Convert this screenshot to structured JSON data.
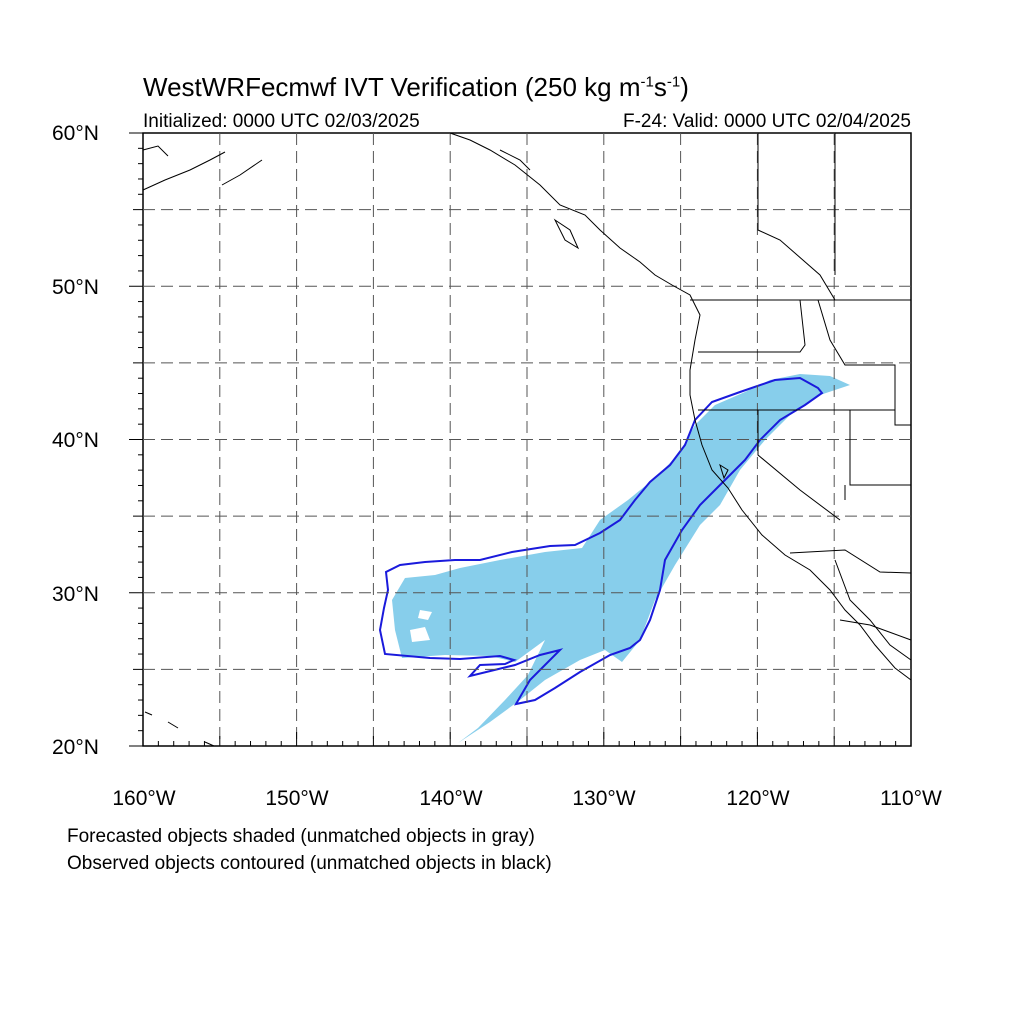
{
  "title": "WestWRFecmwf IVT Verification (250 kg m",
  "title_exp1": "-1",
  "title_mid": "s",
  "title_exp2": "-1",
  "title_end": ")",
  "initialized": "Initialized: 0000 UTC 02/03/2025",
  "valid": "F-24: Valid: 0000 UTC 02/04/2025",
  "lat_labels": [
    "60°N",
    "50°N",
    "40°N",
    "30°N",
    "20°N"
  ],
  "lon_labels": [
    "160°W",
    "150°W",
    "140°W",
    "130°W",
    "120°W",
    "110°W"
  ],
  "caption_forecast": "Forecasted objects shaded (unmatched objects in gray)",
  "caption_observed": "Observed objects contoured (unmatched objects in black)",
  "colors": {
    "forecast_fill": "#87CEEB",
    "observed_contour": "#1a1adc",
    "grid": "#555555",
    "coast": "#000000"
  },
  "map_extent": {
    "lon": [
      -160,
      -110
    ],
    "lat": [
      20,
      60
    ]
  }
}
